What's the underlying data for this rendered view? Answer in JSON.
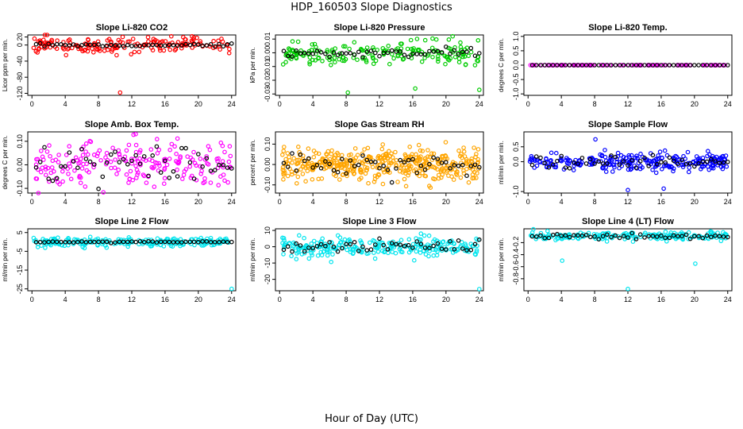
{
  "figure": {
    "title": "HDP_160503  Slope Diagnostics",
    "xlabel": "Hour of Day (UTC)",
    "x_ticks": [
      "0",
      "4",
      "8",
      "12",
      "16",
      "20",
      "24"
    ],
    "xlim": [
      -0.5,
      24.5
    ],
    "overlay_color": "#000000"
  },
  "chart_data": [
    {
      "type": "scatter",
      "title": "Slope Li-820 CO2",
      "ylabel": "Licor ppm per min.",
      "color": "#ff0000",
      "ylim": [
        -125,
        25
      ],
      "yticks": [
        {
          "v": -120,
          "label": "-120"
        },
        {
          "v": -80,
          "label": "-80"
        },
        {
          "v": -40,
          "label": "-40"
        },
        {
          "v": 0,
          "label": "0"
        },
        {
          "v": 20,
          "label": "20"
        }
      ],
      "center": 0,
      "spread": 10,
      "overlay_spread": 2,
      "n": 170,
      "seed": 11,
      "outliers": [
        {
          "x": 10.6,
          "y": -118
        },
        {
          "x": 10.9,
          "y": 20
        },
        {
          "x": 0.3,
          "y": 16
        }
      ]
    },
    {
      "type": "scatter",
      "title": "Slope Li-820 Pressure",
      "ylabel": "kPa per min.",
      "color": "#00cc00",
      "ylim": [
        -0.031,
        0.013
      ],
      "yticks": [
        {
          "v": -0.03,
          "label": "-0.03"
        },
        {
          "v": -0.02,
          "label": "-0.02"
        },
        {
          "v": -0.01,
          "label": "-0.01"
        },
        {
          "v": 0,
          "label": "0.00"
        },
        {
          "v": 0.01,
          "label": "0.01"
        }
      ],
      "center": 0,
      "spread": 0.004,
      "overlay_spread": 0.0015,
      "n": 190,
      "seed": 23,
      "outliers": [
        {
          "x": 8.2,
          "y": -0.029
        },
        {
          "x": 16.3,
          "y": -0.026
        },
        {
          "x": 24.0,
          "y": -0.027
        },
        {
          "x": 20.8,
          "y": 0.012
        }
      ]
    },
    {
      "type": "scatter",
      "title": "Slope Li-820 Temp.",
      "ylabel": "degrees C per min.",
      "color": "#ff00ff",
      "ylim": [
        -1.05,
        1.05
      ],
      "yticks": [
        {
          "v": -1,
          "label": "-1.0"
        },
        {
          "v": -0.5,
          "label": "-0.5"
        },
        {
          "v": 0,
          "label": "0.0"
        },
        {
          "v": 0.5,
          "label": "0.5"
        },
        {
          "v": 1,
          "label": "1.0"
        }
      ],
      "center": 0,
      "spread": 0,
      "overlay_spread": 0,
      "n": 120,
      "seed": 31,
      "outliers": []
    },
    {
      "type": "scatter",
      "title": "Slope Amb. Box Temp.",
      "ylabel": "degrees C per min.",
      "color": "#ff00ff",
      "ylim": [
        -0.12,
        0.14
      ],
      "yticks": [
        {
          "v": -0.1,
          "label": "-0.10"
        },
        {
          "v": 0,
          "label": "0.00"
        },
        {
          "v": 0.1,
          "label": "0.10"
        }
      ],
      "center": 0,
      "spread": 0.05,
      "overlay_spread": 0.04,
      "n": 210,
      "seed": 41,
      "outliers": []
    },
    {
      "type": "scatter",
      "title": "Slope Gas Stream RH",
      "ylabel": "percent per min.",
      "color": "#ffa500",
      "ylim": [
        -0.14,
        0.16
      ],
      "yticks": [
        {
          "v": -0.1,
          "label": "-0.10"
        },
        {
          "v": 0,
          "label": "0.00"
        },
        {
          "v": 0.1,
          "label": "0.10"
        }
      ],
      "center": 0,
      "spread": 0.04,
      "overlay_spread": 0.03,
      "n": 420,
      "seed": 53,
      "outliers": []
    },
    {
      "type": "scatter",
      "title": "Slope Sample Flow",
      "ylabel": "ml/min per min.",
      "color": "#0000ff",
      "ylim": [
        -1.05,
        1.0
      ],
      "yticks": [
        {
          "v": -1,
          "label": "-1.0"
        },
        {
          "v": 0,
          "label": "0.0"
        },
        {
          "v": 0.5,
          "label": "0.5"
        }
      ],
      "center": 0,
      "spread": 0.15,
      "overlay_spread": 0.12,
      "n": 260,
      "seed": 61,
      "outliers": [
        {
          "x": 12.0,
          "y": -0.95
        },
        {
          "x": 16.3,
          "y": -0.9
        },
        {
          "x": 8.1,
          "y": 0.75
        }
      ]
    },
    {
      "type": "scatter",
      "title": "Slope Line 2 Flow",
      "ylabel": "ml/min per min.",
      "color": "#00e5ee",
      "ylim": [
        -26,
        7
      ],
      "yticks": [
        {
          "v": -25,
          "label": "-25"
        },
        {
          "v": -15,
          "label": "-15"
        },
        {
          "v": -5,
          "label": "-5"
        },
        {
          "v": 5,
          "label": "5"
        }
      ],
      "center": 0,
      "spread": 1.2,
      "overlay_spread": 0.15,
      "n": 230,
      "seed": 71,
      "outliers": [
        {
          "x": 24.0,
          "y": -25
        }
      ]
    },
    {
      "type": "scatter",
      "title": "Slope Line 3 Flow",
      "ylabel": "ml/min per min.",
      "color": "#00e5ee",
      "ylim": [
        -27,
        11
      ],
      "yticks": [
        {
          "v": -20,
          "label": "-20"
        },
        {
          "v": -10,
          "label": "-10"
        },
        {
          "v": 0,
          "label": "0"
        },
        {
          "v": 10,
          "label": "10"
        }
      ],
      "center": 0,
      "spread": 2.8,
      "overlay_spread": 2.0,
      "n": 250,
      "seed": 83,
      "outliers": [
        {
          "x": 24.0,
          "y": -26
        }
      ]
    },
    {
      "type": "scatter",
      "title": "Slope Line 4 (LT) Flow",
      "ylabel": "ml/min per min.",
      "color": "#00e5ee",
      "ylim": [
        -1.0,
        0.03
      ],
      "yticks": [
        {
          "v": -0.8,
          "label": "-0.8"
        },
        {
          "v": -0.6,
          "label": "-0.6"
        },
        {
          "v": -0.4,
          "label": "-0.4"
        },
        {
          "v": -0.2,
          "label": "-0.2"
        }
      ],
      "center": -0.1,
      "spread": 0.04,
      "overlay_spread": 0.025,
      "n": 200,
      "seed": 97,
      "outliers": [
        {
          "x": 4.1,
          "y": -0.5
        },
        {
          "x": 20.1,
          "y": -0.55
        },
        {
          "x": 12.0,
          "y": -0.97
        }
      ]
    }
  ]
}
